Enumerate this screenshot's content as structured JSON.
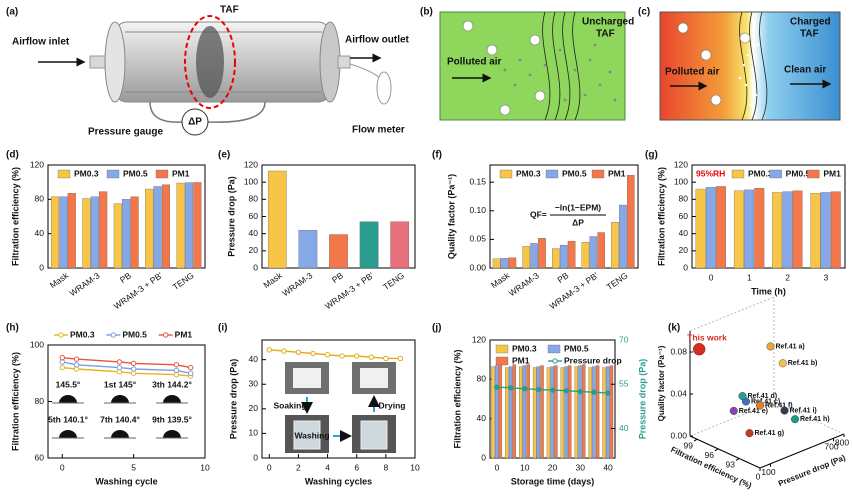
{
  "panels": {
    "a": {
      "label": "(a)",
      "airflow_inlet": "Airflow inlet",
      "taf": "TAF",
      "airflow_outlet": "Airflow outlet",
      "pressure_gauge": "Pressure gauge",
      "delta_p": "ΔP",
      "flow_meter": "Flow meter"
    },
    "b": {
      "label": "(b)",
      "polluted_air": "Polluted air",
      "filter": [
        "Uncharged",
        "TAF"
      ]
    },
    "c": {
      "label": "(c)",
      "polluted_air": "Polluted air",
      "filter": [
        "Charged",
        "TAF"
      ],
      "clean_air": "Clean air"
    }
  },
  "chart_data": [
    {
      "type": "bar",
      "panel_label": "(d)",
      "ylabel": "Filtration efficiency (%)",
      "categories": [
        "Mask",
        "WRAM-3",
        "PB",
        "WRAM-3 + PB'",
        "TENG"
      ],
      "series": [
        {
          "name": "PM0.3",
          "color": "#f7c548",
          "values": [
            83,
            81,
            75,
            92,
            99
          ]
        },
        {
          "name": "PM0.5",
          "color": "#86a8e7",
          "values": [
            83,
            83,
            80,
            95,
            99.5
          ]
        },
        {
          "name": "PM1",
          "color": "#f2784b",
          "values": [
            87,
            89,
            83,
            97,
            99.7
          ]
        }
      ],
      "ylim": [
        0,
        120
      ],
      "yticks": [
        0,
        40,
        80,
        120
      ]
    },
    {
      "type": "bar",
      "panel_label": "(e)",
      "ylabel": "Pressure drop (Pa)",
      "categories": [
        "Mask",
        "WRAM-3",
        "PB",
        "WRAM-3 + PB'",
        "TENG"
      ],
      "values": [
        113,
        44,
        39,
        54,
        54
      ],
      "colors": [
        "#f7c548",
        "#86a8e7",
        "#f2784b",
        "#2a9d8f",
        "#e8707a"
      ],
      "ylim": [
        0,
        120
      ],
      "yticks": [
        0,
        20,
        40,
        60,
        80,
        100,
        120
      ]
    },
    {
      "type": "bar",
      "panel_label": "(f)",
      "ylabel": "Quality factor (Pa⁻¹)",
      "categories": [
        "Mask",
        "WRAM-3",
        "PB",
        "WRAM-3 + PB'",
        "TENG"
      ],
      "series": [
        {
          "name": "PM0.3",
          "color": "#f7c548",
          "values": [
            0.016,
            0.038,
            0.034,
            0.045,
            0.08
          ]
        },
        {
          "name": "PM0.5",
          "color": "#86a8e7",
          "values": [
            0.017,
            0.043,
            0.04,
            0.055,
            0.11
          ]
        },
        {
          "name": "PM1",
          "color": "#f2784b",
          "values": [
            0.018,
            0.052,
            0.047,
            0.062,
            0.162
          ]
        }
      ],
      "annotation": {
        "lhs": "QF=",
        "numerator": "−ln(1−EPM)",
        "denominator": "ΔP"
      },
      "ylim": [
        0,
        0.18
      ],
      "yticks": [
        {
          "value": 0,
          "label": "0.00"
        },
        0.05,
        {
          "value": 0.1,
          "label": "0.10"
        },
        0.15
      ]
    },
    {
      "type": "bar",
      "panel_label": "(g)",
      "ylabel": "Filtration efficiency (%)",
      "xlabel": "Time (h)",
      "annotation": "95%RH",
      "categories": [
        "0",
        "1",
        "2",
        "3"
      ],
      "series": [
        {
          "name": "PM0.3",
          "color": "#f7c548",
          "values": [
            92,
            90,
            88,
            87
          ]
        },
        {
          "name": "PM0.5",
          "color": "#86a8e7",
          "values": [
            94,
            91,
            89,
            88
          ]
        },
        {
          "name": "PM1",
          "color": "#f2784b",
          "values": [
            95,
            93,
            90,
            89
          ]
        }
      ],
      "ylim": [
        0,
        120
      ],
      "yticks": [
        0,
        20,
        40,
        60,
        80,
        100,
        120
      ]
    },
    {
      "type": "line",
      "panel_label": "(h)",
      "ylabel": "Filtration efficiency (%)",
      "xlabel": "Washing cycle",
      "x": [
        0,
        1,
        4,
        5,
        8,
        9
      ],
      "series": [
        {
          "name": "PM0.3",
          "color": "#e6b422",
          "values": [
            92,
            91.5,
            90.5,
            90,
            89.5,
            89
          ]
        },
        {
          "name": "PM0.5",
          "color": "#7a9ee0",
          "values": [
            94,
            93,
            92,
            91.5,
            91,
            90
          ]
        },
        {
          "name": "PM1",
          "color": "#e8553a",
          "values": [
            95.5,
            95,
            94,
            93.5,
            93,
            92
          ]
        }
      ],
      "annotations": [
        "145.5°",
        "1st 145°",
        "3th 144.2°",
        "5th 140.1°",
        "7th 140.4°",
        "9th 139.5°"
      ],
      "xlim": [
        -1,
        10
      ],
      "xticks": [
        0,
        5,
        10
      ],
      "ylim": [
        60,
        100
      ],
      "yticks": [
        60,
        80,
        100
      ]
    },
    {
      "type": "line",
      "panel_label": "(i)",
      "ylabel": "Pressure drop (Pa)",
      "xlabel": "Washing cycles",
      "x": [
        0,
        1,
        2,
        3,
        4,
        5,
        6,
        7,
        8,
        9
      ],
      "series": [
        {
          "color": "#e6a817",
          "values": [
            44,
            43.5,
            43,
            42.5,
            42,
            41.5,
            41.5,
            41,
            40.5,
            40.5
          ]
        }
      ],
      "annotations": [
        "Soaking",
        "Washing",
        "Drying"
      ],
      "xlim": [
        -0.5,
        10
      ],
      "xticks": [
        0,
        2,
        4,
        6,
        8,
        10
      ],
      "ylim": [
        0,
        48
      ],
      "yticks": [
        0,
        10,
        20,
        30,
        40
      ]
    },
    {
      "type": "combo",
      "panel_label": "(j)",
      "ylabel": "Filtration efficiency (%)",
      "xlabel": "Storage time (days)",
      "y2label": "Pressure drop (Pa)",
      "categories": [
        "0",
        null,
        "10",
        null,
        "20",
        null,
        "30",
        null,
        "40"
      ],
      "series": [
        {
          "name": "PM0.3",
          "color": "#f7c548",
          "values": [
            93,
            92,
            93,
            92,
            92,
            92,
            93,
            92,
            92
          ]
        },
        {
          "name": "PM0.5",
          "color": "#86a8e7",
          "values": [
            94,
            93,
            94,
            93,
            93,
            93,
            94,
            93,
            93
          ]
        },
        {
          "name": "PM1",
          "color": "#f2784b",
          "values": [
            95,
            95,
            95,
            94,
            94,
            94,
            95,
            94,
            94
          ]
        },
        {
          "name": "Pressure drop",
          "color": "#2a9d8f",
          "axis": "y2",
          "values": [
            54,
            53.8,
            53.5,
            53.2,
            53,
            52.8,
            52.5,
            52.3,
            52
          ]
        }
      ],
      "ylim": [
        0,
        120
      ],
      "yticks": [
        0,
        40,
        80,
        120
      ],
      "y2lim": [
        30,
        70
      ],
      "y2ticks": [
        40,
        55,
        70
      ]
    },
    {
      "type": "scatter3d",
      "panel_label": "(k)",
      "xlabel": "Pressure drop (Pa)",
      "ylabel": "Filtration efficiency (%)",
      "zlabel": "Quality factor (Pa⁻¹)",
      "points": [
        {
          "name": "This work",
          "color": "#d62d20",
          "pressure_drop": 54,
          "efficiency": 99.5,
          "quality_factor": 0.082
        },
        {
          "name": "Ref.41 a)",
          "color": "#e8a33c",
          "pressure_drop": 700,
          "efficiency": 99,
          "quality_factor": 0.06
        },
        {
          "name": "Ref.41 b)",
          "color": "#f2c14e",
          "pressure_drop": 750,
          "efficiency": 98,
          "quality_factor": 0.045
        },
        {
          "name": "Ref.41 c)",
          "color": "#3a6fc4",
          "pressure_drop": 200,
          "efficiency": 95,
          "quality_factor": 0.04
        },
        {
          "name": "Ref.41 d)",
          "color": "#2a9d8f",
          "pressure_drop": 300,
          "efficiency": 97,
          "quality_factor": 0.035
        },
        {
          "name": "Ref.41 e)",
          "color": "#8e44ad",
          "pressure_drop": 150,
          "efficiency": 96,
          "quality_factor": 0.03
        },
        {
          "name": "Ref.41 f)",
          "color": "#e67e22",
          "pressure_drop": 400,
          "efficiency": 96,
          "quality_factor": 0.025
        },
        {
          "name": "Ref.41 g)",
          "color": "#c0392b",
          "pressure_drop": 100,
          "efficiency": 93,
          "quality_factor": 0.02
        },
        {
          "name": "Ref.41 h)",
          "color": "#16a085",
          "pressure_drop": 600,
          "efficiency": 94,
          "quality_factor": 0.01
        },
        {
          "name": "Ref.41 i)",
          "color": "#2c3e50",
          "pressure_drop": 700,
          "efficiency": 97,
          "quality_factor": 0.005
        }
      ],
      "xlim": [
        0,
        800
      ],
      "xticks": [
        0,
        100,
        700,
        800
      ],
      "ylim": [
        90,
        100
      ],
      "yticks": [
        93,
        96,
        99
      ],
      "zlim": [
        0,
        0.1
      ],
      "zticks": [
        {
          "value": 0,
          "label": "0.00"
        },
        0.04,
        0.08
      ]
    }
  ]
}
